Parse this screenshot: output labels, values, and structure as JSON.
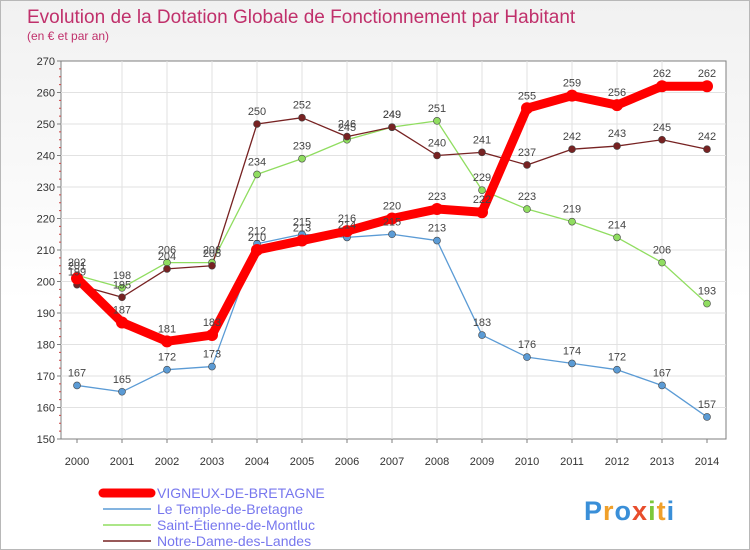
{
  "chart_data": {
    "type": "line",
    "title": "Evolution de la Dotation Globale de Fonctionnement par Habitant",
    "subtitle": "(en € et par an)",
    "xlabel": "",
    "ylabel": "",
    "x": [
      "2000",
      "2001",
      "2002",
      "2003",
      "2004",
      "2005",
      "2006",
      "2007",
      "2008",
      "2009",
      "2010",
      "2011",
      "2012",
      "2013",
      "2014"
    ],
    "yticks": [
      "150",
      "160",
      "170",
      "180",
      "190",
      "200",
      "210",
      "220",
      "230",
      "240",
      "250",
      "260",
      "270"
    ],
    "ylim": [
      150,
      270
    ],
    "grid": true,
    "legend_position": "bottom-left",
    "series": [
      {
        "name": "VIGNEUX-DE-BRETAGNE",
        "color": "#ff0000",
        "values": [
          201,
          187,
          181,
          183,
          210,
          213,
          216,
          220,
          223,
          222,
          255,
          259,
          256,
          262,
          262
        ],
        "labels": [
          "201",
          "187",
          "181",
          "183",
          "210",
          "213",
          "216",
          "220",
          "223",
          "222",
          "255",
          "259",
          "256",
          "262",
          "262"
        ]
      },
      {
        "name": "Le Temple-de-Bretagne",
        "color": "#5b9bd5",
        "values": [
          167,
          165,
          172,
          173,
          212,
          215,
          214,
          215,
          213,
          183,
          176,
          174,
          172,
          167,
          157
        ],
        "labels": [
          "167",
          "165",
          "172",
          "173",
          "212",
          "215",
          "214",
          "215",
          "213",
          "183",
          "176",
          "174",
          "172",
          "167",
          "157"
        ]
      },
      {
        "name": "Saint-Étienne-de-Montluc",
        "color": "#90dd60",
        "values": [
          202,
          198,
          206,
          206,
          234,
          239,
          245,
          249,
          251,
          229,
          223,
          219,
          214,
          206,
          193
        ],
        "labels": [
          "202",
          "198",
          "206",
          "206",
          "234",
          "239",
          "245",
          "249",
          "251",
          "229",
          "223",
          "219",
          "214",
          "206",
          "193"
        ]
      },
      {
        "name": "Notre-Dame-des-Landes",
        "color": "#772222",
        "values": [
          199,
          195,
          204,
          205,
          250,
          252,
          246,
          249,
          240,
          241,
          237,
          242,
          243,
          245,
          242
        ],
        "labels": [
          "199",
          "195",
          "204",
          "205",
          "250",
          "252",
          "246",
          "249",
          "240",
          "241",
          "237",
          "242",
          "243",
          "245",
          "242"
        ]
      }
    ]
  },
  "brand": {
    "logo_text": "Proxiti"
  }
}
